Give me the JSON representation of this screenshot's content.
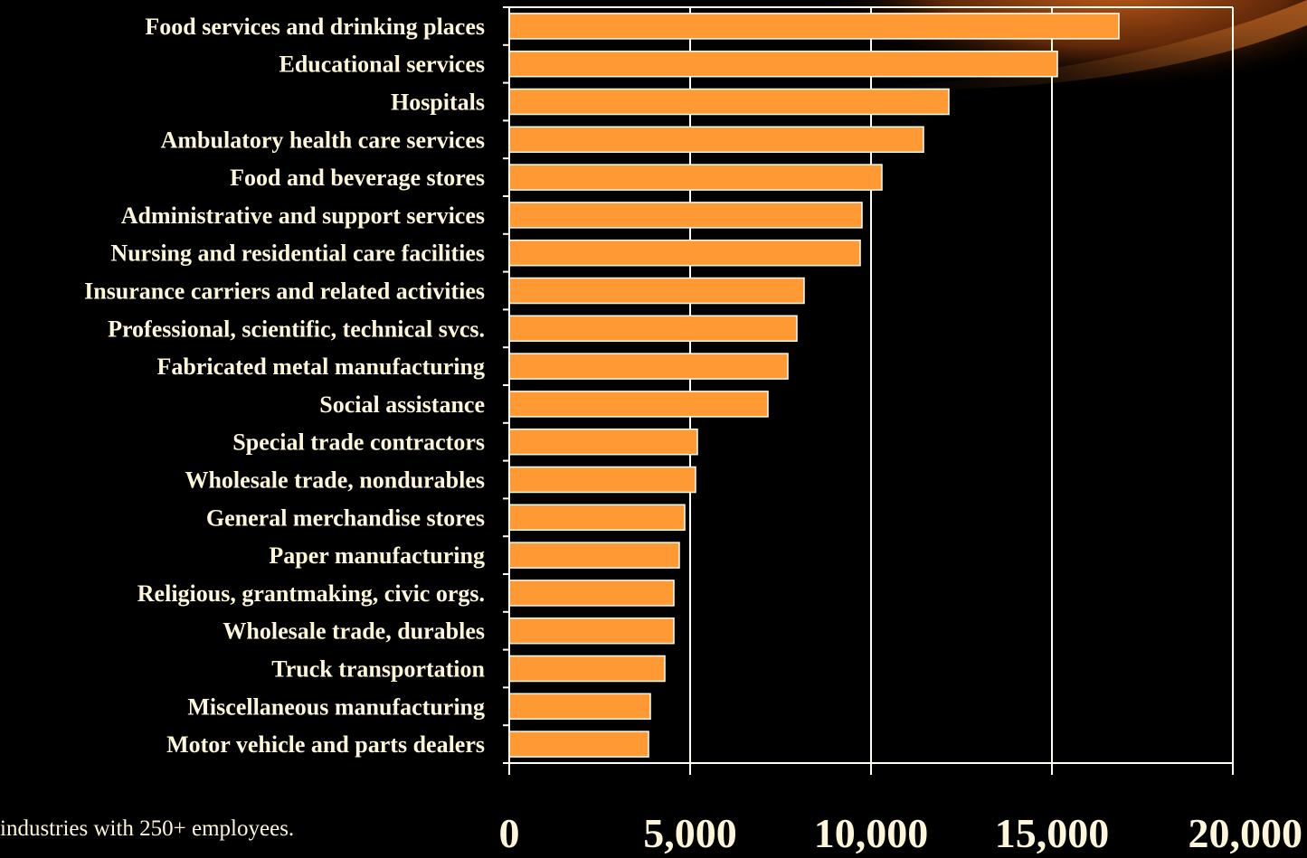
{
  "chart_data": {
    "type": "bar",
    "orientation": "horizontal",
    "title": "",
    "xlabel": "",
    "ylabel": "",
    "categories": [
      "Food services and drinking places",
      "Educational services",
      "Hospitals",
      "Ambulatory health care services",
      "Food and beverage stores",
      "Administrative and support services",
      "Nursing and residential care facilities",
      "Insurance carriers and related activities",
      "Professional, scientific, technical svcs.",
      "Fabricated metal manufacturing",
      "Social assistance",
      "Special trade contractors",
      "Wholesale trade, nondurables",
      "General merchandise stores",
      "Paper manufacturing",
      "Religious, grantmaking, civic orgs.",
      "Wholesale trade, durables",
      "Truck transportation",
      "Miscellaneous manufacturing",
      "Motor vehicle and parts dealers"
    ],
    "values": [
      16850,
      15150,
      12150,
      11450,
      10300,
      9750,
      9700,
      8150,
      7950,
      7700,
      7150,
      5200,
      5150,
      4850,
      4700,
      4550,
      4550,
      4300,
      3900,
      3850
    ],
    "xlim": [
      0,
      20000
    ],
    "xticks": [
      "0",
      "5,000",
      "10,000",
      "15,000",
      "20,000"
    ],
    "grid": true,
    "bar_color": "#ff9933",
    "bar_edge_color": "#fffdf0",
    "axis_color": "#fffdf0",
    "text_color": "#fdf6d8",
    "background": "#000000"
  },
  "footnote": "industries with 250+ employees."
}
